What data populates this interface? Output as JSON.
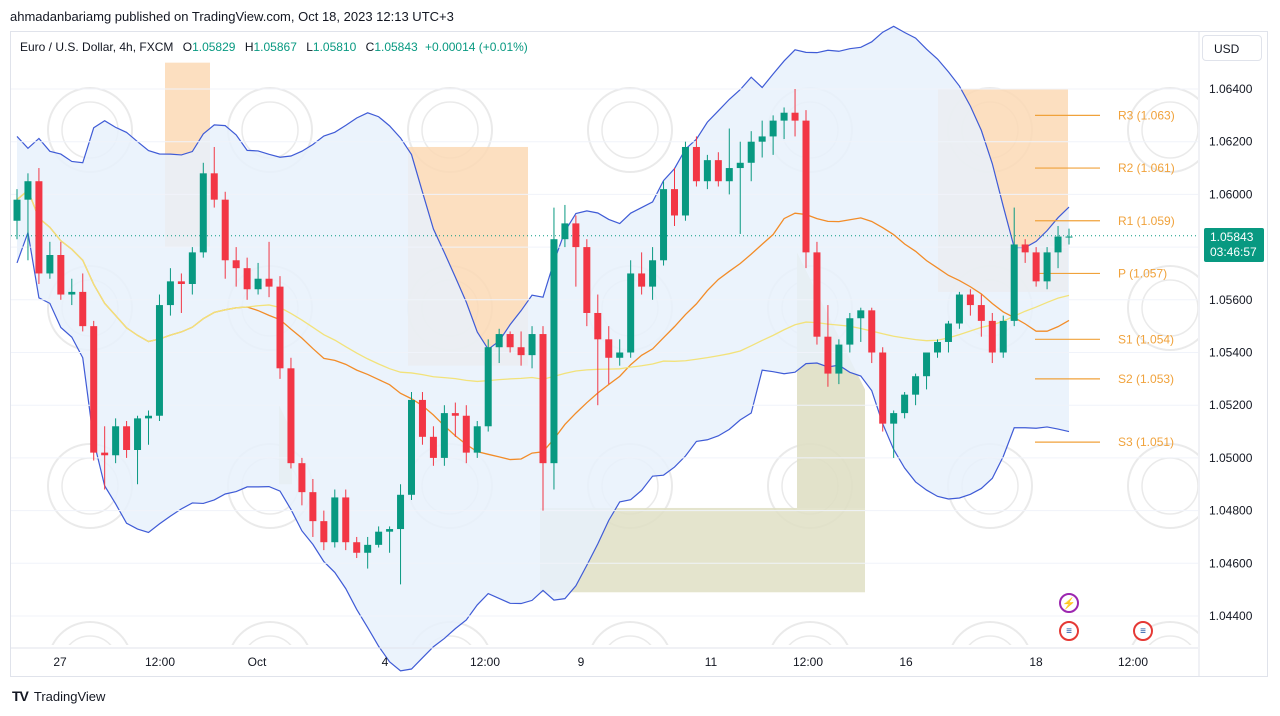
{
  "header": {
    "publisher": "ahmadanbariamg published on TradingView.com, Oct 18, 2023 12:13 UTC+3"
  },
  "legend": {
    "symbol": "Euro / U.S. Dollar, 4h, FXCM",
    "open_label": "O",
    "open": "1.05829",
    "high_label": "H",
    "high": "1.05867",
    "low_label": "L",
    "low": "1.05810",
    "close_label": "C",
    "close": "1.05843",
    "change": "+0.00014 (+0.01%)"
  },
  "currency_button": "USD",
  "last_price": {
    "price": "1.05843",
    "countdown": "03:46:57"
  },
  "footer": {
    "logo": "TV",
    "brand": "TradingView"
  },
  "events": {
    "bolt_icon": "lightning-bolt-icon",
    "flag_icon": "us-flag-icon"
  },
  "colors": {
    "up": "#089981",
    "down": "#f23645",
    "bb_line": "#3f5bd6",
    "bb_fill": "#e8f1fb",
    "ma_orange": "#f28c28",
    "ma_yellow": "#f2e27a",
    "pivot": "#f0a23b",
    "zone_peach": "#fbd9b5",
    "zone_olive": "#dfdfc4"
  },
  "chart_data": {
    "type": "candlestick",
    "ylim": [
      1.043,
      1.0655
    ],
    "y_ticks": [
      "1.06400",
      "1.06200",
      "1.06000",
      "1.05800",
      "1.05600",
      "1.05400",
      "1.05200",
      "1.05000",
      "1.04800",
      "1.04600",
      "1.04400"
    ],
    "x_ticks": [
      "27",
      "12:00",
      "Oct",
      "4",
      "12:00",
      "9",
      "11",
      "12:00",
      "16",
      "18",
      "12:00"
    ],
    "pivots": [
      {
        "label": "R3 (1.063)",
        "value": 1.063
      },
      {
        "label": "R2 (1.061)",
        "value": 1.061
      },
      {
        "label": "R1 (1.059)",
        "value": 1.059
      },
      {
        "label": "P (1.057)",
        "value": 1.057
      },
      {
        "label": "S1 (1.054)",
        "value": 1.0545
      },
      {
        "label": "S2 (1.053)",
        "value": 1.053
      },
      {
        "label": "S3 (1.051)",
        "value": 1.0506
      }
    ],
    "candles": [
      [
        1.059,
        1.0602,
        1.0583,
        1.0598
      ],
      [
        1.0598,
        1.0608,
        1.0575,
        1.0605
      ],
      [
        1.0605,
        1.061,
        1.0566,
        1.057
      ],
      [
        1.057,
        1.0582,
        1.0568,
        1.0577
      ],
      [
        1.0577,
        1.0582,
        1.056,
        1.0562
      ],
      [
        1.0562,
        1.0568,
        1.0558,
        1.0563
      ],
      [
        1.0563,
        1.057,
        1.0548,
        1.055
      ],
      [
        1.055,
        1.0552,
        1.0499,
        1.0502
      ],
      [
        1.0502,
        1.0512,
        1.0488,
        1.0501
      ],
      [
        1.0501,
        1.0515,
        1.0498,
        1.0512
      ],
      [
        1.0512,
        1.0514,
        1.05,
        1.0503
      ],
      [
        1.0503,
        1.0516,
        1.049,
        1.0515
      ],
      [
        1.0515,
        1.0518,
        1.0505,
        1.0516
      ],
      [
        1.0516,
        1.0562,
        1.0514,
        1.0558
      ],
      [
        1.0558,
        1.0572,
        1.0554,
        1.0567
      ],
      [
        1.0567,
        1.057,
        1.0555,
        1.0566
      ],
      [
        1.0566,
        1.058,
        1.0562,
        1.0578
      ],
      [
        1.0578,
        1.0612,
        1.0576,
        1.0608
      ],
      [
        1.0608,
        1.0618,
        1.0595,
        1.0598
      ],
      [
        1.0598,
        1.0601,
        1.0568,
        1.0575
      ],
      [
        1.0575,
        1.058,
        1.0565,
        1.0572
      ],
      [
        1.0572,
        1.0576,
        1.056,
        1.0564
      ],
      [
        1.0564,
        1.0574,
        1.0562,
        1.0568
      ],
      [
        1.0568,
        1.0582,
        1.0561,
        1.0565
      ],
      [
        1.0565,
        1.0569,
        1.053,
        1.0534
      ],
      [
        1.0534,
        1.0538,
        1.0496,
        1.0498
      ],
      [
        1.0498,
        1.05,
        1.0482,
        1.0487
      ],
      [
        1.0487,
        1.0492,
        1.047,
        1.0476
      ],
      [
        1.0476,
        1.048,
        1.0465,
        1.0468
      ],
      [
        1.0468,
        1.0488,
        1.0466,
        1.0485
      ],
      [
        1.0485,
        1.0488,
        1.0465,
        1.0468
      ],
      [
        1.0468,
        1.047,
        1.0462,
        1.0464
      ],
      [
        1.0464,
        1.047,
        1.0458,
        1.0467
      ],
      [
        1.0467,
        1.0474,
        1.0466,
        1.0472
      ],
      [
        1.0472,
        1.0474,
        1.0464,
        1.0473
      ],
      [
        1.0473,
        1.049,
        1.0452,
        1.0486
      ],
      [
        1.0486,
        1.0525,
        1.0484,
        1.0522
      ],
      [
        1.0522,
        1.0525,
        1.0505,
        1.0508
      ],
      [
        1.0508,
        1.0512,
        1.0497,
        1.05
      ],
      [
        1.05,
        1.052,
        1.0497,
        1.0517
      ],
      [
        1.0517,
        1.0521,
        1.0508,
        1.0516
      ],
      [
        1.0516,
        1.052,
        1.0498,
        1.0502
      ],
      [
        1.0502,
        1.0514,
        1.05,
        1.0512
      ],
      [
        1.0512,
        1.0545,
        1.051,
        1.0542
      ],
      [
        1.0542,
        1.0549,
        1.0536,
        1.0547
      ],
      [
        1.0547,
        1.0548,
        1.054,
        1.0542
      ],
      [
        1.0542,
        1.0548,
        1.0535,
        1.0539
      ],
      [
        1.0539,
        1.055,
        1.0534,
        1.0547
      ],
      [
        1.0547,
        1.055,
        1.048,
        1.0498
      ],
      [
        1.0498,
        1.0595,
        1.0488,
        1.0583
      ],
      [
        1.0583,
        1.0596,
        1.058,
        1.0589
      ],
      [
        1.0589,
        1.0592,
        1.0565,
        1.058
      ],
      [
        1.058,
        1.0583,
        1.055,
        1.0555
      ],
      [
        1.0555,
        1.0562,
        1.052,
        1.0545
      ],
      [
        1.0545,
        1.055,
        1.0528,
        1.0538
      ],
      [
        1.0538,
        1.0545,
        1.0535,
        1.054
      ],
      [
        1.054,
        1.0575,
        1.0538,
        1.057
      ],
      [
        1.057,
        1.0578,
        1.0562,
        1.0565
      ],
      [
        1.0565,
        1.058,
        1.056,
        1.0575
      ],
      [
        1.0575,
        1.0605,
        1.0573,
        1.0602
      ],
      [
        1.0602,
        1.061,
        1.0588,
        1.0592
      ],
      [
        1.0592,
        1.062,
        1.059,
        1.0618
      ],
      [
        1.0618,
        1.0622,
        1.0603,
        1.0605
      ],
      [
        1.0605,
        1.0615,
        1.0602,
        1.0613
      ],
      [
        1.0613,
        1.0616,
        1.0603,
        1.0605
      ],
      [
        1.0605,
        1.0625,
        1.06,
        1.061
      ],
      [
        1.061,
        1.062,
        1.0585,
        1.0612
      ],
      [
        1.0612,
        1.0624,
        1.0605,
        1.062
      ],
      [
        1.062,
        1.0628,
        1.0614,
        1.0622
      ],
      [
        1.0622,
        1.063,
        1.0615,
        1.0628
      ],
      [
        1.0628,
        1.0633,
        1.0621,
        1.0631
      ],
      [
        1.0631,
        1.064,
        1.0622,
        1.0628
      ],
      [
        1.0628,
        1.0632,
        1.0572,
        1.0578
      ],
      [
        1.0578,
        1.0582,
        1.0543,
        1.0546
      ],
      [
        1.0546,
        1.0558,
        1.0527,
        1.0532
      ],
      [
        1.0532,
        1.0545,
        1.0528,
        1.0543
      ],
      [
        1.0543,
        1.0555,
        1.054,
        1.0553
      ],
      [
        1.0553,
        1.0557,
        1.0544,
        1.0556
      ],
      [
        1.0556,
        1.0557,
        1.0536,
        1.054
      ],
      [
        1.054,
        1.0542,
        1.051,
        1.0513
      ],
      [
        1.0513,
        1.0518,
        1.05,
        1.0517
      ],
      [
        1.0517,
        1.0525,
        1.0515,
        1.0524
      ],
      [
        1.0524,
        1.0532,
        1.052,
        1.0531
      ],
      [
        1.0531,
        1.054,
        1.0526,
        1.054
      ],
      [
        1.054,
        1.0545,
        1.0538,
        1.0544
      ],
      [
        1.0544,
        1.0552,
        1.054,
        1.0551
      ],
      [
        1.0551,
        1.0563,
        1.0549,
        1.0562
      ],
      [
        1.0562,
        1.0564,
        1.0554,
        1.0558
      ],
      [
        1.0558,
        1.0562,
        1.0546,
        1.0552
      ],
      [
        1.0552,
        1.0555,
        1.0536,
        1.054
      ],
      [
        1.054,
        1.0554,
        1.0538,
        1.0552
      ],
      [
        1.0552,
        1.0595,
        1.055,
        1.0581
      ],
      [
        1.0581,
        1.0583,
        1.0574,
        1.0578
      ],
      [
        1.0578,
        1.058,
        1.0565,
        1.0567
      ],
      [
        1.0567,
        1.058,
        1.0564,
        1.0578
      ],
      [
        1.0578,
        1.0588,
        1.0572,
        1.0584
      ],
      [
        1.0584,
        1.0587,
        1.0581,
        1.0584
      ]
    ]
  }
}
